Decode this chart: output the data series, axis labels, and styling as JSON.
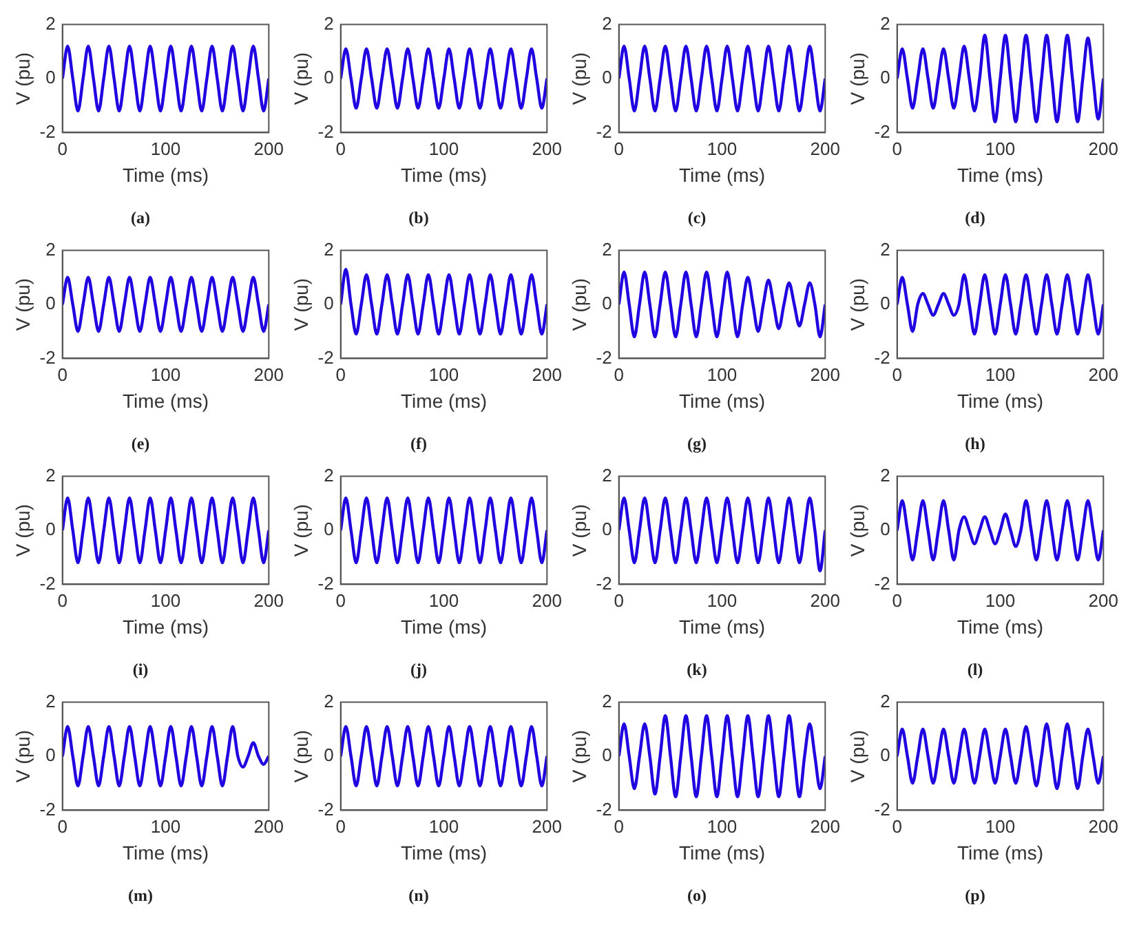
{
  "chart_data": [
    {
      "type": "line",
      "title": "(a)",
      "xlabel": "Time (ms)",
      "ylabel": "V (pu)",
      "xlim": [
        0,
        200
      ],
      "xticks": [
        0,
        100,
        200
      ],
      "ylim": [
        -2,
        2
      ],
      "yticks": [
        -2,
        0,
        2
      ],
      "x": [
        0,
        5,
        10,
        15,
        20,
        25,
        30,
        35,
        40,
        45,
        50,
        55,
        60,
        65,
        70,
        75,
        80,
        85,
        90,
        95,
        100,
        105,
        110,
        115,
        120,
        125,
        130,
        135,
        140,
        145,
        150,
        155,
        160,
        165,
        170,
        175,
        180,
        185,
        190,
        195,
        200
      ],
      "series": [
        {
          "color": "#1f00e0",
          "values": [
            0,
            1.2,
            0,
            -1.2,
            0,
            1.2,
            0,
            -1.2,
            0,
            1.2,
            0,
            -1.2,
            0,
            1.2,
            0,
            -1.2,
            0,
            1.2,
            0,
            -1.2,
            0,
            1.2,
            0,
            -1.2,
            0,
            1.2,
            0,
            -1.2,
            0,
            1.2,
            0,
            -1.2,
            0,
            1.2,
            0,
            -1.2,
            0,
            1.2,
            0,
            -1.2,
            0
          ]
        }
      ]
    },
    {
      "type": "line",
      "title": "(b)",
      "xlabel": "Time (ms)",
      "ylabel": "V (pu)",
      "xlim": [
        0,
        200
      ],
      "xticks": [
        0,
        100,
        200
      ],
      "ylim": [
        -2,
        2
      ],
      "yticks": [
        -2,
        0,
        2
      ],
      "x": [
        0,
        5,
        10,
        15,
        20,
        25,
        30,
        35,
        40,
        45,
        50,
        55,
        60,
        65,
        70,
        75,
        80,
        85,
        90,
        95,
        100,
        105,
        110,
        115,
        120,
        125,
        130,
        135,
        140,
        145,
        150,
        155,
        160,
        165,
        170,
        175,
        180,
        185,
        190,
        195,
        200
      ],
      "series": [
        {
          "color": "#1f00e0",
          "values": [
            0,
            1.1,
            0,
            -1.1,
            0,
            1.1,
            0,
            -1.1,
            0,
            1.1,
            0,
            -1.1,
            0,
            1.1,
            0,
            -1.1,
            0,
            1.1,
            0,
            -1.1,
            0,
            1.1,
            0,
            -1.1,
            0,
            1.1,
            0,
            -1.1,
            0,
            1.1,
            0,
            -1.1,
            0,
            1.1,
            0,
            -1.1,
            0,
            1.1,
            0,
            -1.1,
            0
          ]
        }
      ]
    },
    {
      "type": "line",
      "title": "(c)",
      "xlabel": "Time (ms)",
      "ylabel": "V (pu)",
      "xlim": [
        0,
        200
      ],
      "xticks": [
        0,
        100,
        200
      ],
      "ylim": [
        -2,
        2
      ],
      "yticks": [
        -2,
        0,
        2
      ],
      "x": [
        0,
        5,
        10,
        15,
        20,
        25,
        30,
        35,
        40,
        45,
        50,
        55,
        60,
        65,
        70,
        75,
        80,
        85,
        90,
        95,
        100,
        105,
        110,
        115,
        120,
        125,
        130,
        135,
        140,
        145,
        150,
        155,
        160,
        165,
        170,
        175,
        180,
        185,
        190,
        195,
        200
      ],
      "series": [
        {
          "color": "#1f00e0",
          "values": [
            0,
            1.2,
            0,
            -1.2,
            0,
            1.2,
            0,
            -1.2,
            0,
            1.2,
            0,
            -1.2,
            0,
            1.2,
            0,
            -1.2,
            0,
            1.2,
            0,
            -1.2,
            0,
            1.2,
            0,
            -1.2,
            0,
            1.2,
            0,
            -1.2,
            0,
            1.2,
            0,
            -1.2,
            0,
            1.2,
            0,
            -1.2,
            0,
            1.2,
            0,
            -1.2,
            0
          ]
        }
      ]
    },
    {
      "type": "line",
      "title": "(d)",
      "xlabel": "Time (ms)",
      "ylabel": "V (pu)",
      "xlim": [
        0,
        200
      ],
      "xticks": [
        0,
        100,
        200
      ],
      "ylim": [
        -2,
        2
      ],
      "yticks": [
        -2,
        0,
        2
      ],
      "x": [
        0,
        5,
        10,
        15,
        20,
        25,
        30,
        35,
        40,
        45,
        50,
        55,
        60,
        65,
        70,
        75,
        80,
        85,
        90,
        95,
        100,
        105,
        110,
        115,
        120,
        125,
        130,
        135,
        140,
        145,
        150,
        155,
        160,
        165,
        170,
        175,
        180,
        185,
        190,
        195,
        200
      ],
      "series": [
        {
          "color": "#1f00e0",
          "values": [
            0,
            1.1,
            0,
            -1.1,
            0,
            1.1,
            0,
            -1.1,
            0,
            1.1,
            0,
            -1.1,
            0,
            1.2,
            0,
            -1.2,
            0,
            1.6,
            0,
            -1.6,
            0,
            1.6,
            0,
            -1.6,
            0,
            1.6,
            0,
            -1.6,
            0,
            1.6,
            0,
            -1.6,
            0,
            1.6,
            0,
            -1.6,
            0,
            1.5,
            0,
            -1.5,
            0
          ]
        }
      ]
    },
    {
      "type": "line",
      "title": "(e)",
      "xlabel": "Time (ms)",
      "ylabel": "V (pu)",
      "xlim": [
        0,
        200
      ],
      "xticks": [
        0,
        100,
        200
      ],
      "ylim": [
        -2,
        2
      ],
      "yticks": [
        -2,
        0,
        2
      ],
      "x": [
        0,
        5,
        10,
        15,
        20,
        25,
        30,
        35,
        40,
        45,
        50,
        55,
        60,
        65,
        70,
        75,
        80,
        85,
        90,
        95,
        100,
        105,
        110,
        115,
        120,
        125,
        130,
        135,
        140,
        145,
        150,
        155,
        160,
        165,
        170,
        175,
        180,
        185,
        190,
        195,
        200
      ],
      "series": [
        {
          "color": "#1f00e0",
          "values": [
            0,
            1,
            0,
            -1,
            0,
            1,
            0,
            -1,
            0,
            1,
            0,
            -1,
            0,
            1,
            0,
            -1,
            0,
            1,
            0,
            -1,
            0,
            1,
            0,
            -1,
            0,
            1,
            0,
            -1,
            0,
            1,
            0,
            -1,
            0,
            1,
            0,
            -1,
            0,
            1,
            0,
            -1,
            0
          ]
        }
      ]
    },
    {
      "type": "line",
      "title": "(f)",
      "xlabel": "Time (ms)",
      "ylabel": "V (pu)",
      "xlim": [
        0,
        200
      ],
      "xticks": [
        0,
        100,
        200
      ],
      "ylim": [
        -2,
        2
      ],
      "yticks": [
        -2,
        0,
        2
      ],
      "x": [
        0,
        5,
        10,
        15,
        20,
        25,
        30,
        35,
        40,
        45,
        50,
        55,
        60,
        65,
        70,
        75,
        80,
        85,
        90,
        95,
        100,
        105,
        110,
        115,
        120,
        125,
        130,
        135,
        140,
        145,
        150,
        155,
        160,
        165,
        170,
        175,
        180,
        185,
        190,
        195,
        200
      ],
      "series": [
        {
          "color": "#1f00e0",
          "values": [
            0,
            1.3,
            0,
            -1.1,
            0,
            1.1,
            0,
            -1.1,
            0,
            1.1,
            0,
            -1.1,
            0,
            1.1,
            0,
            -1.1,
            0,
            1.1,
            0,
            -1.1,
            0,
            1.1,
            0,
            -1.1,
            0,
            1.1,
            0,
            -1.1,
            0,
            1.1,
            0,
            -1.1,
            0,
            1.1,
            0,
            -1.1,
            0,
            1.1,
            0,
            -1.1,
            0
          ]
        }
      ]
    },
    {
      "type": "line",
      "title": "(g)",
      "xlabel": "Time (ms)",
      "ylabel": "V (pu)",
      "xlim": [
        0,
        200
      ],
      "xticks": [
        0,
        100,
        200
      ],
      "ylim": [
        -2,
        2
      ],
      "yticks": [
        -2,
        0,
        2
      ],
      "x": [
        0,
        5,
        10,
        15,
        20,
        25,
        30,
        35,
        40,
        45,
        50,
        55,
        60,
        65,
        70,
        75,
        80,
        85,
        90,
        95,
        100,
        105,
        110,
        115,
        120,
        125,
        130,
        135,
        140,
        145,
        150,
        155,
        160,
        165,
        170,
        175,
        180,
        185,
        190,
        195,
        200
      ],
      "series": [
        {
          "color": "#1f00e0",
          "values": [
            0,
            1.2,
            0,
            -1.2,
            0,
            1.2,
            0,
            -1.2,
            0,
            1.2,
            0,
            -1.2,
            0,
            1.2,
            0,
            -1.2,
            0,
            1.2,
            0,
            -1.2,
            0,
            1.2,
            0,
            -1.2,
            0,
            1,
            0,
            -1,
            0,
            0.9,
            0,
            -0.9,
            0,
            0.8,
            0,
            -0.8,
            0,
            0.8,
            0,
            -1.2,
            0
          ]
        }
      ]
    },
    {
      "type": "line",
      "title": "(h)",
      "xlabel": "Time (ms)",
      "ylabel": "V (pu)",
      "xlim": [
        0,
        200
      ],
      "xticks": [
        0,
        100,
        200
      ],
      "ylim": [
        -2,
        2
      ],
      "yticks": [
        -2,
        0,
        2
      ],
      "x": [
        0,
        5,
        10,
        15,
        20,
        25,
        30,
        35,
        40,
        45,
        50,
        55,
        60,
        65,
        70,
        75,
        80,
        85,
        90,
        95,
        100,
        105,
        110,
        115,
        120,
        125,
        130,
        135,
        140,
        145,
        150,
        155,
        160,
        165,
        170,
        175,
        180,
        185,
        190,
        195,
        200
      ],
      "series": [
        {
          "color": "#1f00e0",
          "values": [
            0,
            1,
            0,
            -1,
            0,
            0.4,
            0,
            -0.4,
            0,
            0.4,
            0,
            -0.4,
            0,
            1.1,
            0,
            -1.1,
            0,
            1.1,
            0,
            -1.1,
            0,
            1.1,
            0,
            -1.1,
            0,
            1.1,
            0,
            -1.1,
            0,
            1.1,
            0,
            -1.1,
            0,
            1.1,
            0,
            -1.1,
            0,
            1.1,
            0,
            -1.1,
            0
          ]
        }
      ]
    },
    {
      "type": "line",
      "title": "(i)",
      "xlabel": "Time (ms)",
      "ylabel": "V (pu)",
      "xlim": [
        0,
        200
      ],
      "xticks": [
        0,
        100,
        200
      ],
      "ylim": [
        -2,
        2
      ],
      "yticks": [
        -2,
        0,
        2
      ],
      "x": [
        0,
        5,
        10,
        15,
        20,
        25,
        30,
        35,
        40,
        45,
        50,
        55,
        60,
        65,
        70,
        75,
        80,
        85,
        90,
        95,
        100,
        105,
        110,
        115,
        120,
        125,
        130,
        135,
        140,
        145,
        150,
        155,
        160,
        165,
        170,
        175,
        180,
        185,
        190,
        195,
        200
      ],
      "series": [
        {
          "color": "#1f00e0",
          "values": [
            0,
            1.2,
            0,
            -1.2,
            0,
            1.2,
            0,
            -1.2,
            0,
            1.2,
            0,
            -1.2,
            0,
            1.2,
            0,
            -1.2,
            0,
            1.2,
            0,
            -1.2,
            0,
            1.2,
            0,
            -1.2,
            0,
            1.2,
            0,
            -1.2,
            0,
            1.2,
            0,
            -1.2,
            0,
            1.2,
            0,
            -1.2,
            0,
            1.2,
            0,
            -1.2,
            0
          ]
        }
      ]
    },
    {
      "type": "line",
      "title": "(j)",
      "xlabel": "Time (ms)",
      "ylabel": "V (pu)",
      "xlim": [
        0,
        200
      ],
      "xticks": [
        0,
        100,
        200
      ],
      "ylim": [
        -2,
        2
      ],
      "yticks": [
        -2,
        0,
        2
      ],
      "x": [
        0,
        5,
        10,
        15,
        20,
        25,
        30,
        35,
        40,
        45,
        50,
        55,
        60,
        65,
        70,
        75,
        80,
        85,
        90,
        95,
        100,
        105,
        110,
        115,
        120,
        125,
        130,
        135,
        140,
        145,
        150,
        155,
        160,
        165,
        170,
        175,
        180,
        185,
        190,
        195,
        200
      ],
      "series": [
        {
          "color": "#1f00e0",
          "values": [
            0,
            1.2,
            0,
            -1.2,
            0,
            1.2,
            0,
            -1.2,
            0,
            1.2,
            0,
            -1.2,
            0,
            1.2,
            0,
            -1.2,
            0,
            1.2,
            0,
            -1.2,
            0,
            1.2,
            0,
            -1.2,
            0,
            1.2,
            0,
            -1.2,
            0,
            1.2,
            0,
            -1.2,
            0,
            1.2,
            0,
            -1.2,
            0,
            1.2,
            0,
            -1.2,
            0
          ]
        }
      ]
    },
    {
      "type": "line",
      "title": "(k)",
      "xlabel": "Time (ms)",
      "ylabel": "V (pu)",
      "xlim": [
        0,
        200
      ],
      "xticks": [
        0,
        100,
        200
      ],
      "ylim": [
        -2,
        2
      ],
      "yticks": [
        -2,
        0,
        2
      ],
      "x": [
        0,
        5,
        10,
        15,
        20,
        25,
        30,
        35,
        40,
        45,
        50,
        55,
        60,
        65,
        70,
        75,
        80,
        85,
        90,
        95,
        100,
        105,
        110,
        115,
        120,
        125,
        130,
        135,
        140,
        145,
        150,
        155,
        160,
        165,
        170,
        175,
        180,
        185,
        190,
        195,
        200
      ],
      "series": [
        {
          "color": "#1f00e0",
          "values": [
            0,
            1.2,
            0,
            -1.2,
            0,
            1.2,
            0,
            -1.2,
            0,
            1.2,
            0,
            -1.2,
            0,
            1.2,
            0,
            -1.2,
            0,
            1.2,
            0,
            -1.2,
            0,
            1.2,
            0,
            -1.2,
            0,
            1.2,
            0,
            -1.2,
            0,
            1.2,
            0,
            -1.2,
            0,
            1.2,
            0,
            -1.2,
            0,
            1.2,
            0,
            -1.5,
            0
          ]
        }
      ]
    },
    {
      "type": "line",
      "title": "(l)",
      "xlabel": "Time (ms)",
      "ylabel": "V (pu)",
      "xlim": [
        0,
        200
      ],
      "xticks": [
        0,
        100,
        200
      ],
      "ylim": [
        -2,
        2
      ],
      "yticks": [
        -2,
        0,
        2
      ],
      "x": [
        0,
        5,
        10,
        15,
        20,
        25,
        30,
        35,
        40,
        45,
        50,
        55,
        60,
        65,
        70,
        75,
        80,
        85,
        90,
        95,
        100,
        105,
        110,
        115,
        120,
        125,
        130,
        135,
        140,
        145,
        150,
        155,
        160,
        165,
        170,
        175,
        180,
        185,
        190,
        195,
        200
      ],
      "series": [
        {
          "color": "#1f00e0",
          "values": [
            0,
            1.1,
            0,
            -1.1,
            0,
            1.1,
            0,
            -1.1,
            0,
            1.1,
            0,
            -1.1,
            0,
            0.5,
            0,
            -0.5,
            0,
            0.5,
            0,
            -0.5,
            0,
            0.6,
            0,
            -0.6,
            0,
            1.1,
            0,
            -1.1,
            0,
            1.1,
            0,
            -1.1,
            0,
            1.1,
            0,
            -1.1,
            0,
            1.1,
            0,
            -1.1,
            0
          ]
        }
      ]
    },
    {
      "type": "line",
      "title": "(m)",
      "xlabel": "Time (ms)",
      "ylabel": "V (pu)",
      "xlim": [
        0,
        200
      ],
      "xticks": [
        0,
        100,
        200
      ],
      "ylim": [
        -2,
        2
      ],
      "yticks": [
        -2,
        0,
        2
      ],
      "x": [
        0,
        5,
        10,
        15,
        20,
        25,
        30,
        35,
        40,
        45,
        50,
        55,
        60,
        65,
        70,
        75,
        80,
        85,
        90,
        95,
        100,
        105,
        110,
        115,
        120,
        125,
        130,
        135,
        140,
        145,
        150,
        155,
        160,
        165,
        170,
        175,
        180,
        185,
        190,
        195,
        200
      ],
      "series": [
        {
          "color": "#1f00e0",
          "values": [
            0,
            1.1,
            0,
            -1.1,
            0,
            1.1,
            0,
            -1.1,
            0,
            1.1,
            0,
            -1.1,
            0,
            1.1,
            0,
            -1.1,
            0,
            1.1,
            0,
            -1.1,
            0,
            1.1,
            0,
            -1.1,
            0,
            1.1,
            0,
            -1.1,
            0,
            1.1,
            0,
            -1.1,
            0,
            1.1,
            0,
            -0.4,
            0,
            0.5,
            0,
            -0.3,
            0
          ]
        }
      ]
    },
    {
      "type": "line",
      "title": "(n)",
      "xlabel": "Time (ms)",
      "ylabel": "V (pu)",
      "xlim": [
        0,
        200
      ],
      "xticks": [
        0,
        100,
        200
      ],
      "ylim": [
        -2,
        2
      ],
      "yticks": [
        -2,
        0,
        2
      ],
      "x": [
        0,
        5,
        10,
        15,
        20,
        25,
        30,
        35,
        40,
        45,
        50,
        55,
        60,
        65,
        70,
        75,
        80,
        85,
        90,
        95,
        100,
        105,
        110,
        115,
        120,
        125,
        130,
        135,
        140,
        145,
        150,
        155,
        160,
        165,
        170,
        175,
        180,
        185,
        190,
        195,
        200
      ],
      "series": [
        {
          "color": "#1f00e0",
          "values": [
            0,
            1.1,
            0,
            -1.1,
            0,
            1.1,
            0,
            -1.1,
            0,
            1.1,
            0,
            -1.1,
            0,
            1.1,
            0,
            -1.1,
            0,
            1.1,
            0,
            -1.1,
            0,
            1.1,
            0,
            -1.1,
            0,
            1.1,
            0,
            -1.1,
            0,
            1.1,
            0,
            -1.1,
            0,
            1.1,
            0,
            -1.1,
            0,
            1.1,
            0,
            -1.1,
            0
          ]
        }
      ]
    },
    {
      "type": "line",
      "title": "(o)",
      "xlabel": "Time (ms)",
      "ylabel": "V (pu)",
      "xlim": [
        0,
        200
      ],
      "xticks": [
        0,
        100,
        200
      ],
      "ylim": [
        -2,
        2
      ],
      "yticks": [
        -2,
        0,
        2
      ],
      "x": [
        0,
        5,
        10,
        15,
        20,
        25,
        30,
        35,
        40,
        45,
        50,
        55,
        60,
        65,
        70,
        75,
        80,
        85,
        90,
        95,
        100,
        105,
        110,
        115,
        120,
        125,
        130,
        135,
        140,
        145,
        150,
        155,
        160,
        165,
        170,
        175,
        180,
        185,
        190,
        195,
        200
      ],
      "series": [
        {
          "color": "#1f00e0",
          "values": [
            0,
            1.2,
            0,
            -1.2,
            0,
            1.2,
            0,
            -1.4,
            0,
            1.5,
            0,
            -1.5,
            0,
            1.5,
            0,
            -1.5,
            0,
            1.5,
            0,
            -1.5,
            0,
            1.5,
            0,
            -1.5,
            0,
            1.5,
            0,
            -1.5,
            0,
            1.5,
            0,
            -1.5,
            0,
            1.5,
            0,
            -1.5,
            0,
            1.2,
            0,
            -1.2,
            0
          ]
        }
      ]
    },
    {
      "type": "line",
      "title": "(p)",
      "xlabel": "Time (ms)",
      "ylabel": "V (pu)",
      "xlim": [
        0,
        200
      ],
      "xticks": [
        0,
        100,
        200
      ],
      "ylim": [
        -2,
        2
      ],
      "yticks": [
        -2,
        0,
        2
      ],
      "x": [
        0,
        5,
        10,
        15,
        20,
        25,
        30,
        35,
        40,
        45,
        50,
        55,
        60,
        65,
        70,
        75,
        80,
        85,
        90,
        95,
        100,
        105,
        110,
        115,
        120,
        125,
        130,
        135,
        140,
        145,
        150,
        155,
        160,
        165,
        170,
        175,
        180,
        185,
        190,
        195,
        200
      ],
      "series": [
        {
          "color": "#1f00e0",
          "values": [
            0,
            1,
            0,
            -1,
            0,
            1,
            0,
            -1,
            0,
            1,
            0,
            -1,
            0,
            1,
            0,
            -1,
            0,
            1,
            0,
            -1,
            0,
            1,
            0,
            -1,
            0,
            1.1,
            0,
            -1.1,
            0,
            1.2,
            0,
            -1.2,
            0,
            1.2,
            0,
            -1.2,
            0,
            1,
            0,
            -1,
            0
          ]
        }
      ]
    }
  ]
}
